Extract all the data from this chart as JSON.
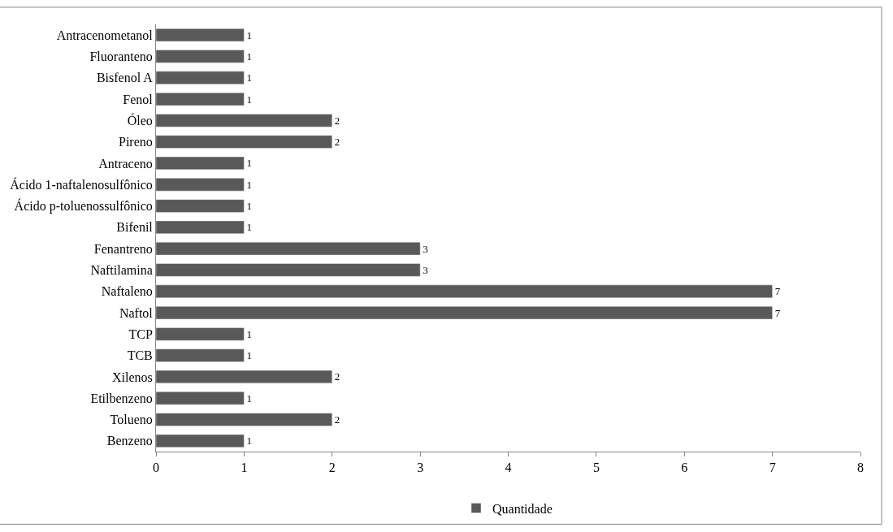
{
  "chart_data": {
    "type": "bar",
    "orientation": "horizontal",
    "categories": [
      "Antracenometanol",
      "Fluoranteno",
      "Bisfenol A",
      "Fenol",
      "Óleo",
      "Pireno",
      "Antraceno",
      "Ácido 1-naftalenosulfônico",
      "Ácido p-toluenossulfônico",
      "Bifenil",
      "Fenantreno",
      "Naftilamina",
      "Naftaleno",
      "Naftol",
      "TCP",
      "TCB",
      "Xilenos",
      "Etilbenzeno",
      "Tolueno",
      "Benzeno"
    ],
    "series": [
      {
        "name": "Quantidade",
        "color": "#595959",
        "values": [
          1,
          1,
          1,
          1,
          2,
          2,
          1,
          1,
          1,
          1,
          3,
          3,
          7,
          7,
          1,
          1,
          2,
          1,
          2,
          1
        ]
      }
    ],
    "xlim": [
      0,
      8
    ],
    "xticks": [
      0,
      1,
      2,
      3,
      4,
      5,
      6,
      7,
      8
    ],
    "legend": "bottom",
    "data_labels": true
  }
}
